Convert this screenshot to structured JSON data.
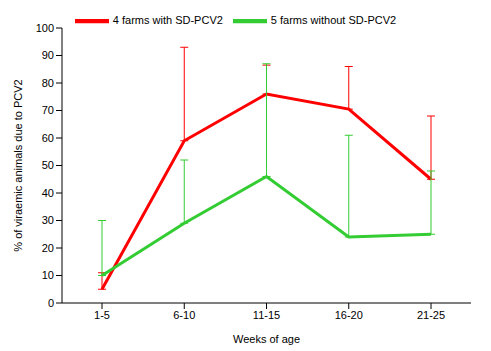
{
  "chart_data": {
    "type": "line",
    "x_label": "Weeks of age",
    "y_label": "% of viraemic animals due to PCV2",
    "categories": [
      "1-5",
      "6-10",
      "11-15",
      "16-20",
      "21-25"
    ],
    "series": [
      {
        "name": "4 farms with SD-PCV2",
        "color": "#ff0000",
        "values": [
          5,
          59,
          76,
          70.5,
          45
        ],
        "errors": [
          6,
          34,
          10.5,
          15.5,
          23
        ]
      },
      {
        "name": "5 farms without SD-PCV2",
        "color": "#33cc33",
        "values": [
          10,
          29,
          46,
          24,
          25
        ],
        "errors": [
          20,
          23,
          41,
          37,
          23
        ]
      }
    ],
    "ylim": [
      0,
      100
    ],
    "yticks": [
      0,
      10,
      20,
      30,
      40,
      50,
      60,
      70,
      80,
      90,
      100
    ],
    "legend": "top",
    "grid": false
  }
}
